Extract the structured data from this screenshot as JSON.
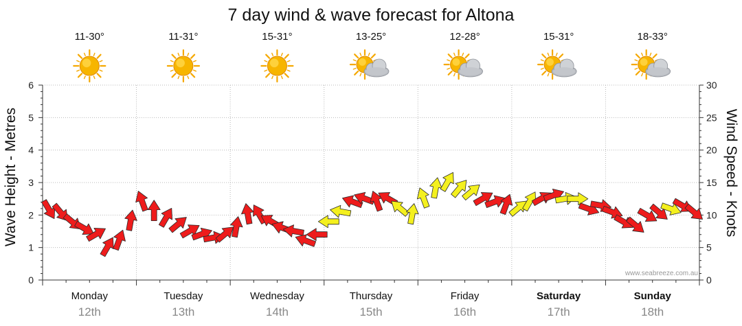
{
  "chart_data": {
    "type": "line",
    "title": "7 day wind & wave forecast for Altona",
    "ylabel": "Wave Height - Metres",
    "y2label": "Wind Speed - Knots",
    "ylim": [
      0,
      6
    ],
    "y2lim": [
      0,
      30
    ],
    "yticks": [
      "0",
      "1",
      "2",
      "3",
      "4",
      "5",
      "6"
    ],
    "y2ticks": [
      "0",
      "5",
      "10",
      "15",
      "20",
      "25",
      "30"
    ],
    "grid": true,
    "credit": "www.seabreeze.com.au",
    "days": [
      {
        "name": "Monday",
        "date": "12th",
        "temp": "11-30°",
        "icon": "sun-icon",
        "bold": false
      },
      {
        "name": "Tuesday",
        "date": "13th",
        "temp": "11-31°",
        "icon": "sun-icon",
        "bold": false
      },
      {
        "name": "Wednesday",
        "date": "14th",
        "temp": "15-31°",
        "icon": "sun-icon",
        "bold": false
      },
      {
        "name": "Thursday",
        "date": "15th",
        "temp": "13-25°",
        "icon": "partly-cloudy-icon",
        "bold": false
      },
      {
        "name": "Friday",
        "date": "16th",
        "temp": "12-28°",
        "icon": "partly-cloudy-icon",
        "bold": false
      },
      {
        "name": "Saturday",
        "date": "17th",
        "temp": "15-31°",
        "icon": "partly-cloudy-icon",
        "bold": true
      },
      {
        "name": "Sunday",
        "date": "18th",
        "temp": "18-33°",
        "icon": "partly-cloudy-icon",
        "bold": true
      }
    ],
    "wind_series": {
      "name": "Wind speed (knots)",
      "unit": "knots",
      "x_hours": [
        0,
        3,
        6,
        9,
        12,
        15,
        18,
        21,
        24,
        27,
        30,
        33,
        36,
        39,
        42,
        45,
        48,
        51,
        54,
        57,
        60,
        63,
        66,
        69,
        72,
        75,
        78,
        81,
        84,
        87,
        90,
        93,
        96,
        99,
        102,
        105,
        108,
        111,
        114,
        117,
        120,
        123,
        126,
        129,
        132,
        135,
        138,
        141,
        144,
        147,
        150,
        153,
        156,
        159,
        162,
        165
      ],
      "speed": [
        11,
        10.5,
        9,
        8,
        7,
        5,
        6,
        9,
        12,
        10.5,
        9.5,
        8.5,
        7.5,
        7,
        6.5,
        7,
        8,
        10,
        10,
        9,
        8,
        7.5,
        6,
        7,
        9,
        10.5,
        12,
        12.5,
        12,
        12.5,
        11,
        10,
        12.5,
        14,
        15,
        14,
        13.5,
        12.5,
        12,
        11.5,
        11,
        12,
        12.5,
        13,
        12.5,
        12.5,
        11,
        11.5,
        10.5,
        9,
        8.5,
        10,
        10.5,
        11,
        11.5,
        10.5
      ],
      "direction_deg": [
        330,
        320,
        310,
        300,
        240,
        210,
        200,
        190,
        160,
        180,
        210,
        230,
        240,
        250,
        260,
        230,
        190,
        170,
        150,
        120,
        110,
        100,
        110,
        90,
        90,
        100,
        110,
        110,
        160,
        120,
        130,
        190,
        160,
        190,
        210,
        220,
        230,
        240,
        250,
        200,
        230,
        210,
        240,
        250,
        260,
        270,
        290,
        280,
        290,
        300,
        310,
        300,
        310,
        290,
        300,
        310
      ],
      "color_category": [
        "red",
        "red",
        "red",
        "red",
        "red",
        "red",
        "red",
        "red",
        "red",
        "red",
        "red",
        "red",
        "red",
        "red",
        "red",
        "red",
        "red",
        "red",
        "red",
        "red",
        "red",
        "red",
        "red",
        "red",
        "yellow",
        "yellow",
        "red",
        "red",
        "red",
        "red",
        "yellow",
        "yellow",
        "yellow",
        "yellow",
        "yellow",
        "yellow",
        "yellow",
        "red",
        "red",
        "red",
        "yellow",
        "yellow",
        "red",
        "red",
        "yellow",
        "yellow",
        "red",
        "red",
        "red",
        "red",
        "red",
        "red",
        "red",
        "yellow",
        "red",
        "red"
      ]
    },
    "colors": {
      "red": "#ee1c1c",
      "yellow": "#f4f01e",
      "outline": "#2a2a2a",
      "grid": "#b8b8b8"
    }
  }
}
